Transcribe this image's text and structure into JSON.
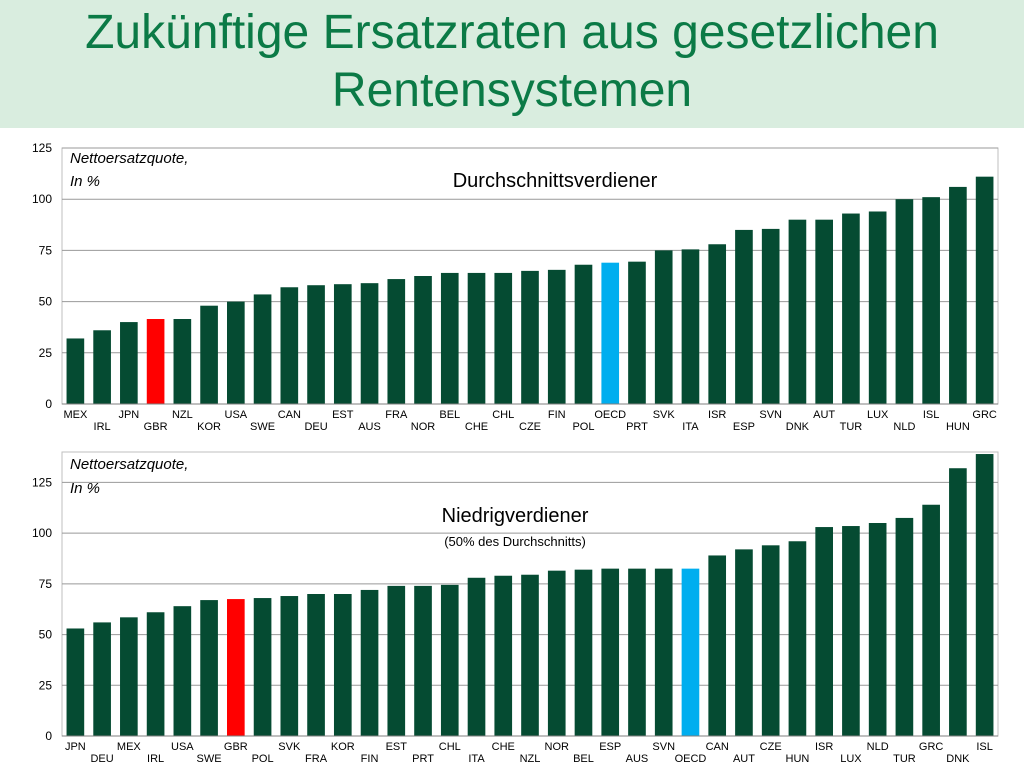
{
  "slide": {
    "title_line1": "Zukünftige Ersatzraten aus gesetzlichen",
    "title_line2": "Rentensystemen"
  },
  "colors": {
    "bar": "#054b32",
    "highlight_gbr": "#ff0000",
    "highlight_oecd": "#00aeef",
    "title": "#0b7a46",
    "title_band": "#d9eddf"
  },
  "chart_data": [
    {
      "type": "bar",
      "title": "Durchschnittsverdiener",
      "subtitle": "",
      "note_line1": "Nettoersatzquote,",
      "note_line2": "In %",
      "ylim": [
        0,
        125
      ],
      "yticks": [
        0,
        25,
        50,
        75,
        100,
        125
      ],
      "grid": true,
      "highlight": {
        "GBR": "red",
        "OECD": "blue"
      },
      "categories": [
        "MEX",
        "IRL",
        "JPN",
        "GBR",
        "NZL",
        "KOR",
        "USA",
        "SWE",
        "CAN",
        "DEU",
        "EST",
        "AUS",
        "FRA",
        "NOR",
        "BEL",
        "CHE",
        "CHL",
        "CZE",
        "FIN",
        "POL",
        "OECD",
        "PRT",
        "SVK",
        "ITA",
        "ISR",
        "ESP",
        "SVN",
        "DNK",
        "AUT",
        "TUR",
        "LUX",
        "NLD",
        "ISL",
        "HUN",
        "GRC"
      ],
      "values": [
        32,
        36,
        40,
        41.5,
        41.5,
        48,
        50,
        53.5,
        57,
        58,
        58.5,
        59,
        61,
        62.5,
        64,
        64,
        64,
        65,
        65.5,
        68,
        69,
        69.5,
        75,
        75.5,
        78,
        85,
        85.5,
        90,
        90,
        93,
        94,
        100,
        101,
        106,
        111
      ]
    },
    {
      "type": "bar",
      "title": "Niedrigverdiener",
      "subtitle": "(50% des Durchschnitts)",
      "note_line1": "Nettoersatzquote,",
      "note_line2": "In %",
      "ylim": [
        0,
        140
      ],
      "yticks": [
        0,
        25,
        50,
        75,
        100,
        125
      ],
      "grid": true,
      "highlight": {
        "GBR": "red",
        "OECD": "blue"
      },
      "categories": [
        "JPN",
        "DEU",
        "MEX",
        "IRL",
        "USA",
        "SWE",
        "GBR",
        "POL",
        "SVK",
        "FRA",
        "KOR",
        "FIN",
        "EST",
        "PRT",
        "CHL",
        "ITA",
        "CHE",
        "NZL",
        "NOR",
        "BEL",
        "ESP",
        "AUS",
        "SVN",
        "OECD",
        "CAN",
        "AUT",
        "CZE",
        "HUN",
        "ISR",
        "LUX",
        "NLD",
        "TUR",
        "GRC",
        "DNK",
        "ISL"
      ],
      "values": [
        53,
        56,
        58.5,
        61,
        64,
        67,
        67.5,
        68,
        69,
        70,
        70,
        72,
        74,
        74,
        74.5,
        78,
        79,
        79.5,
        81.5,
        82,
        82.5,
        82.5,
        82.5,
        82.5,
        89,
        92,
        94,
        96,
        103,
        103.5,
        105,
        107.5,
        114,
        132,
        139
      ]
    }
  ]
}
